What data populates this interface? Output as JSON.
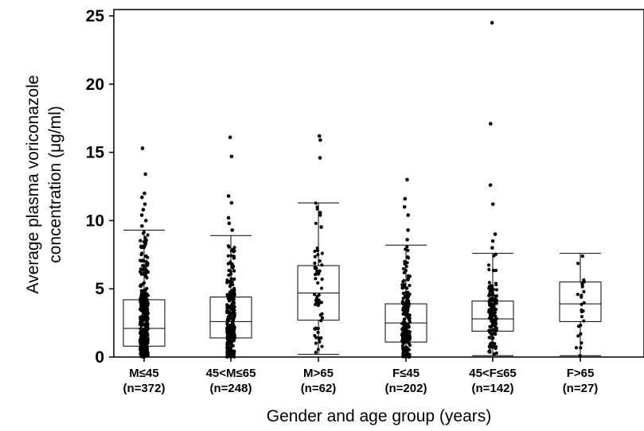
{
  "chart_data": {
    "type": "box",
    "title": "",
    "xlabel": "Gender and age group (years)",
    "ylabel_line1": "Average plasma voriconazole",
    "ylabel_line2": "concentration (μg/ml)",
    "ylim": [
      0,
      25
    ],
    "yticks": [
      0,
      5,
      10,
      15,
      20,
      25
    ],
    "grid": false,
    "categories": [
      {
        "label": "M≤45",
        "n_label": "(n=372)",
        "min": 0.0,
        "q1": 0.8,
        "median": 2.1,
        "q3": 4.2,
        "max": 9.3,
        "outliers": [
          9.6,
          10.0,
          10.4,
          10.8,
          11.2,
          11.7,
          12.0,
          13.4,
          15.3
        ]
      },
      {
        "label": "45<M≤65",
        "n_label": "(n=248)",
        "min": 0.0,
        "q1": 1.4,
        "median": 2.6,
        "q3": 4.4,
        "max": 8.9,
        "outliers": [
          9.3,
          9.8,
          10.2,
          11.3,
          11.8,
          14.7,
          16.1
        ]
      },
      {
        "label": "M>65",
        "n_label": "(n=62)",
        "min": 0.2,
        "q1": 2.7,
        "median": 4.7,
        "q3": 6.7,
        "max": 11.3,
        "outliers": [
          14.6,
          15.9,
          16.2
        ]
      },
      {
        "label": "F≤45",
        "n_label": "(n=202)",
        "min": 0.0,
        "q1": 1.1,
        "median": 2.5,
        "q3": 3.9,
        "max": 8.2,
        "outliers": [
          8.6,
          9.3,
          10.4,
          11.0,
          11.6,
          13.0
        ]
      },
      {
        "label": "45<F≤65",
        "n_label": "(n=142)",
        "min": 0.1,
        "q1": 1.9,
        "median": 2.8,
        "q3": 4.1,
        "max": 7.6,
        "outliers": [
          8.0,
          8.5,
          9.0,
          11.2,
          12.6,
          17.1,
          24.5
        ]
      },
      {
        "label": "F>65",
        "n_label": "(n=27)",
        "min": 0.1,
        "q1": 2.6,
        "median": 3.9,
        "q3": 5.5,
        "max": 7.6,
        "outliers": []
      }
    ]
  }
}
